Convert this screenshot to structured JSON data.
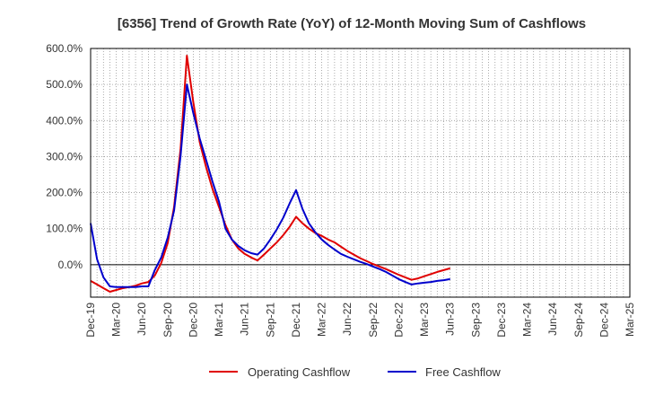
{
  "chart_data": {
    "type": "line",
    "title": "[6356]  Trend of Growth Rate (YoY) of 12-Month Moving Sum of Cashflows",
    "xlabel": "",
    "ylabel": "",
    "ylim": [
      -90,
      600
    ],
    "yticks": [
      0,
      100,
      200,
      300,
      400,
      500,
      600
    ],
    "ytick_labels": [
      "0.0%",
      "100.0%",
      "200.0%",
      "300.0%",
      "400.0%",
      "500.0%",
      "600.0%"
    ],
    "x_tick_labels": [
      "Dec-19",
      "Mar-20",
      "Jun-20",
      "Sep-20",
      "Dec-20",
      "Mar-21",
      "Jun-21",
      "Sep-21",
      "Dec-21",
      "Mar-22",
      "Jun-22",
      "Sep-22",
      "Dec-22",
      "Mar-23",
      "Jun-23",
      "Sep-23",
      "Dec-23",
      "Mar-24",
      "Jun-24",
      "Sep-24",
      "Dec-24",
      "Mar-25"
    ],
    "grid": true,
    "legend_position": "bottom",
    "series": [
      {
        "name": "Operating Cashflow",
        "color": "#e00000",
        "x": [
          0,
          1,
          2,
          3,
          4,
          5,
          6,
          7,
          8,
          9,
          10,
          11,
          12,
          13,
          14,
          15,
          16,
          17,
          18,
          19,
          20,
          21,
          22,
          23,
          24,
          25,
          26,
          27,
          28,
          29,
          30,
          31,
          32,
          33,
          34,
          35,
          36,
          37,
          38,
          39,
          40,
          41,
          42,
          43,
          44,
          45,
          46,
          47,
          48,
          49,
          50,
          51,
          52,
          53,
          54,
          55,
          56,
          57,
          58,
          59,
          60,
          61,
          62,
          63,
          64,
          65,
          66,
          67,
          68,
          69,
          70,
          71,
          72,
          73,
          74,
          75,
          76,
          77
        ],
        "values": [
          -45,
          -55,
          -65,
          -75,
          -70,
          -65,
          -62,
          -58,
          -52,
          -48,
          -30,
          5,
          60,
          160,
          320,
          580,
          450,
          340,
          270,
          210,
          160,
          110,
          70,
          45,
          30,
          20,
          12,
          28,
          45,
          62,
          82,
          105,
          133,
          115,
          100,
          88,
          80,
          70,
          62,
          50,
          38,
          28,
          18,
          10,
          2,
          -5,
          -12,
          -20,
          -28,
          -35,
          -42,
          -38,
          -32,
          -26,
          -20,
          -15,
          -10,
          null,
          null,
          null,
          null,
          null,
          null,
          null,
          null,
          null,
          null,
          null,
          null,
          null,
          null,
          null,
          null,
          null,
          null,
          null,
          null,
          null
        ]
      },
      {
        "name": "Free Cashflow",
        "color": "#0000cc",
        "x": [
          0,
          1,
          2,
          3,
          4,
          5,
          6,
          7,
          8,
          9,
          10,
          11,
          12,
          13,
          14,
          15,
          16,
          17,
          18,
          19,
          20,
          21,
          22,
          23,
          24,
          25,
          26,
          27,
          28,
          29,
          30,
          31,
          32,
          33,
          34,
          35,
          36,
          37,
          38,
          39,
          40,
          41,
          42,
          43,
          44,
          45,
          46,
          47,
          48,
          49,
          50,
          51,
          52,
          53,
          54,
          55,
          56,
          57,
          58,
          59,
          60,
          61,
          62,
          63,
          64,
          65,
          66,
          67,
          68,
          69,
          70,
          71,
          72,
          73,
          74,
          75,
          76,
          77
        ],
        "values": [
          115,
          15,
          -35,
          -60,
          -62,
          -62,
          -62,
          -62,
          -60,
          -60,
          -15,
          20,
          75,
          150,
          300,
          500,
          420,
          350,
          290,
          230,
          175,
          100,
          70,
          52,
          40,
          32,
          28,
          45,
          70,
          98,
          130,
          170,
          207,
          155,
          115,
          90,
          70,
          55,
          42,
          30,
          22,
          15,
          8,
          2,
          -5,
          -12,
          -20,
          -30,
          -40,
          -48,
          -55,
          -52,
          -50,
          -48,
          -45,
          -43,
          -40,
          null,
          null,
          null,
          null,
          null,
          null,
          null,
          null,
          null,
          null,
          null,
          null,
          null,
          null,
          null,
          null,
          null,
          null,
          null,
          null,
          null
        ]
      }
    ]
  }
}
